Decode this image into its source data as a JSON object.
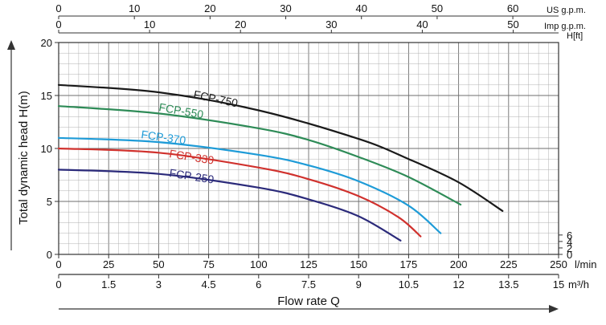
{
  "chart_data": {
    "type": "line",
    "x_primary": {
      "unit": "l/min",
      "range": [
        0,
        250
      ],
      "ticks": [
        "0",
        "25",
        "50",
        "75",
        "100",
        "125",
        "150",
        "175",
        "200",
        "225",
        "250"
      ]
    },
    "x_m3h": {
      "unit": "m³/h",
      "ticks": [
        "0",
        "1.5",
        "3",
        "4.5",
        "6",
        "7.5",
        "9",
        "10.5",
        "12",
        "13.5",
        "15"
      ]
    },
    "x_us_gpm": {
      "unit": "US g.p.m.",
      "ticks": [
        "0",
        "10",
        "20",
        "30",
        "40",
        "50",
        "60"
      ]
    },
    "x_imp_gpm": {
      "unit": "Imp g.p.m.",
      "ticks": [
        "0",
        "10",
        "20",
        "30",
        "40",
        "50"
      ]
    },
    "y_primary": {
      "label": "Total dynamic head H(m)",
      "range": [
        0,
        20
      ],
      "ticks": [
        "0",
        "5",
        "10",
        "15",
        "20"
      ]
    },
    "y_secondary": {
      "unit": "H[ft]",
      "ticks": [
        "0",
        "2",
        "4",
        "6"
      ]
    },
    "xlabel": "Flow rate Q",
    "grid": true,
    "series": [
      {
        "name": "FCP-750",
        "color": "#1a1a1a",
        "x": [
          0,
          50,
          100,
          150,
          175,
          200,
          222
        ],
        "y": [
          16.0,
          15.3,
          13.6,
          10.9,
          9.0,
          6.8,
          4.1
        ]
      },
      {
        "name": "FCP-550",
        "color": "#2e8b57",
        "x": [
          0,
          50,
          100,
          125,
          150,
          175,
          201
        ],
        "y": [
          14.0,
          13.3,
          11.9,
          10.8,
          9.2,
          7.3,
          4.7
        ]
      },
      {
        "name": "FCP-370",
        "color": "#1e9bd7",
        "x": [
          0,
          50,
          100,
          125,
          150,
          175,
          191
        ],
        "y": [
          11.0,
          10.6,
          9.4,
          8.4,
          6.9,
          4.6,
          2.0
        ]
      },
      {
        "name": "FCP-330",
        "color": "#d0312d",
        "x": [
          0,
          50,
          100,
          125,
          150,
          170,
          181
        ],
        "y": [
          10.0,
          9.6,
          8.2,
          7.1,
          5.5,
          3.5,
          1.7
        ]
      },
      {
        "name": "FCP-250",
        "color": "#2b2a7a",
        "x": [
          0,
          50,
          100,
          125,
          150,
          171
        ],
        "y": [
          8.0,
          7.6,
          6.3,
          5.2,
          3.6,
          1.3
        ]
      }
    ]
  }
}
